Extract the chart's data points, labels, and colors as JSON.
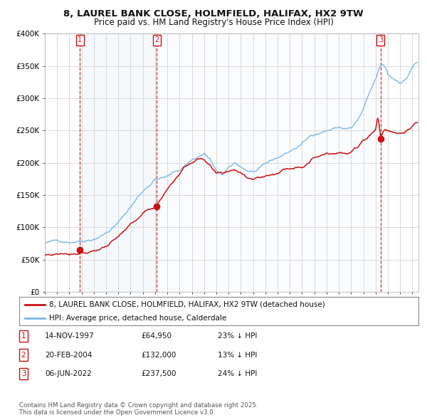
{
  "title_line1": "8, LAUREL BANK CLOSE, HOLMFIELD, HALIFAX, HX2 9TW",
  "title_line2": "Price paid vs. HM Land Registry's House Price Index (HPI)",
  "background_color": "#ffffff",
  "plot_bg_color": "#ffffff",
  "grid_color": "#cccccc",
  "hpi_color": "#7ab8e8",
  "price_color": "#cc1111",
  "shade_color": "#daeaf7",
  "ylim": [
    0,
    400000
  ],
  "yticks": [
    0,
    50000,
    100000,
    150000,
    200000,
    250000,
    300000,
    350000,
    400000
  ],
  "ytick_labels": [
    "£0",
    "£50K",
    "£100K",
    "£150K",
    "£200K",
    "£250K",
    "£300K",
    "£350K",
    "£400K"
  ],
  "sale_dates": [
    1997.875,
    2004.125,
    2022.42
  ],
  "sale_prices": [
    64950,
    132000,
    237500
  ],
  "sale_labels": [
    "1",
    "2",
    "3"
  ],
  "legend_line1": "8, LAUREL BANK CLOSE, HOLMFIELD, HALIFAX, HX2 9TW (detached house)",
  "legend_line2": "HPI: Average price, detached house, Calderdale",
  "table_data": [
    [
      "1",
      "14-NOV-1997",
      "£64,950",
      "23% ↓ HPI"
    ],
    [
      "2",
      "20-FEB-2004",
      "£132,000",
      "13% ↓ HPI"
    ],
    [
      "3",
      "06-JUN-2022",
      "£237,500",
      "24% ↓ HPI"
    ]
  ],
  "footnote": "Contains HM Land Registry data © Crown copyright and database right 2025.\nThis data is licensed under the Open Government Licence v3.0.",
  "dashed_line_color": "#cc1111",
  "xmin": 1995.0,
  "xmax": 2025.5
}
